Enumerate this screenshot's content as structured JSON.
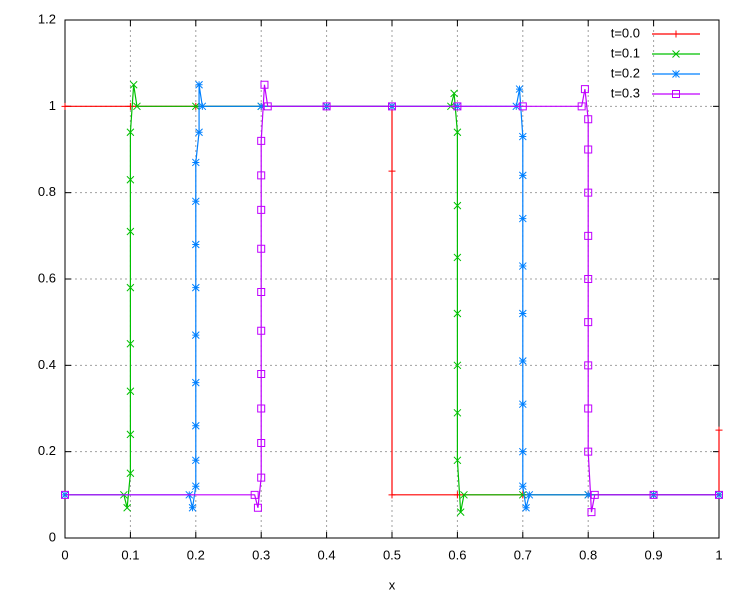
{
  "chart_data": {
    "type": "line",
    "xlabel": "x",
    "xlim": [
      0,
      1
    ],
    "xticks": [
      0,
      0.1,
      0.2,
      0.3,
      0.4,
      0.5,
      0.6,
      0.7,
      0.8,
      0.9,
      1
    ],
    "ylim": [
      0,
      1.2
    ],
    "yticks": [
      0,
      0.2,
      0.4,
      0.6,
      0.8,
      1,
      1.2
    ],
    "grid": true,
    "legend": "top-right",
    "series": [
      {
        "name": "t=0.0",
        "color": "#ff0000",
        "marker": "plus",
        "x": [
          0,
          0.1,
          0.2,
          0.3,
          0.4,
          0.5,
          0.5,
          0.5,
          0.6,
          0.7,
          0.8,
          0.9,
          1,
          1
        ],
        "values": [
          1,
          1,
          1,
          1,
          1,
          1,
          0.85,
          0.1,
          0.1,
          0.1,
          0.1,
          0.1,
          0.1,
          0.25
        ]
      },
      {
        "name": "t=0.1",
        "color": "#00c000",
        "marker": "cross",
        "x": [
          0,
          0.09,
          0.095,
          0.1,
          0.1,
          0.1,
          0.1,
          0.1,
          0.1,
          0.1,
          0.1,
          0.105,
          0.11,
          0.2,
          0.3,
          0.4,
          0.5,
          0.59,
          0.595,
          0.6,
          0.6,
          0.6,
          0.6,
          0.6,
          0.6,
          0.6,
          0.605,
          0.61,
          0.7,
          0.8,
          0.9,
          1
        ],
        "values": [
          0.1,
          0.1,
          0.07,
          0.15,
          0.24,
          0.34,
          0.45,
          0.58,
          0.71,
          0.83,
          0.94,
          1.05,
          1,
          1,
          1,
          1,
          1,
          1,
          1.03,
          0.94,
          0.77,
          0.65,
          0.52,
          0.4,
          0.29,
          0.18,
          0.06,
          0.1,
          0.1,
          0.1,
          0.1,
          0.1
        ]
      },
      {
        "name": "t=0.2",
        "color": "#0080ff",
        "marker": "star",
        "x": [
          0,
          0.19,
          0.195,
          0.2,
          0.2,
          0.2,
          0.2,
          0.2,
          0.2,
          0.2,
          0.2,
          0.2,
          0.205,
          0.205,
          0.21,
          0.3,
          0.4,
          0.5,
          0.6,
          0.69,
          0.695,
          0.7,
          0.7,
          0.7,
          0.7,
          0.7,
          0.7,
          0.7,
          0.7,
          0.7,
          0.705,
          0.71,
          0.8,
          0.9,
          1
        ],
        "values": [
          0.1,
          0.1,
          0.07,
          0.12,
          0.18,
          0.26,
          0.36,
          0.47,
          0.58,
          0.68,
          0.78,
          0.87,
          0.94,
          1.05,
          1,
          1,
          1,
          1,
          1,
          1,
          1.04,
          0.93,
          0.84,
          0.74,
          0.63,
          0.52,
          0.41,
          0.31,
          0.2,
          0.12,
          0.07,
          0.1,
          0.1,
          0.1,
          0.1
        ]
      },
      {
        "name": "t=0.3",
        "color": "#c000ff",
        "marker": "square",
        "x": [
          0,
          0.29,
          0.295,
          0.3,
          0.3,
          0.3,
          0.3,
          0.3,
          0.3,
          0.3,
          0.3,
          0.3,
          0.3,
          0.305,
          0.31,
          0.4,
          0.5,
          0.6,
          0.7,
          0.79,
          0.795,
          0.8,
          0.8,
          0.8,
          0.8,
          0.8,
          0.8,
          0.8,
          0.8,
          0.8,
          0.805,
          0.81,
          0.9,
          1
        ],
        "values": [
          0.1,
          0.1,
          0.07,
          0.14,
          0.22,
          0.3,
          0.38,
          0.48,
          0.57,
          0.67,
          0.76,
          0.84,
          0.92,
          1.05,
          1,
          1,
          1,
          1,
          1,
          1,
          1.04,
          0.97,
          0.9,
          0.8,
          0.7,
          0.6,
          0.5,
          0.4,
          0.3,
          0.2,
          0.06,
          0.1,
          0.1,
          0.1
        ]
      }
    ]
  }
}
